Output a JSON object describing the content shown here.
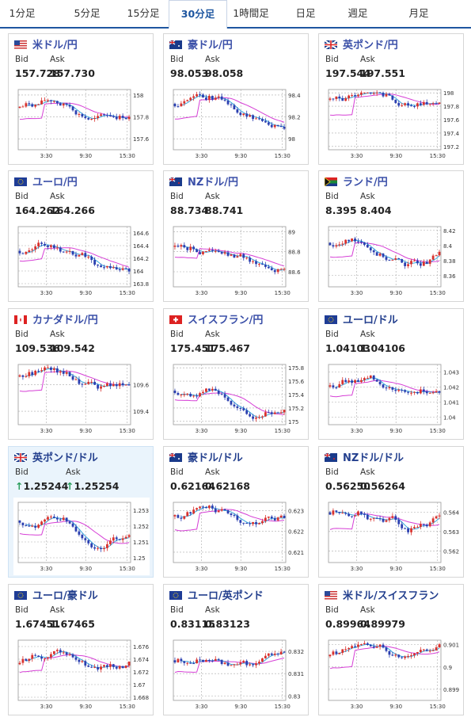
{
  "tabs": [
    {
      "label": "1分足",
      "active": false
    },
    {
      "label": "5分足",
      "active": false
    },
    {
      "label": "15分足",
      "active": false
    },
    {
      "label": "30分足",
      "active": true
    },
    {
      "label": "1時間足",
      "active": false
    },
    {
      "label": "日足",
      "active": false
    },
    {
      "label": "週足",
      "active": false
    },
    {
      "label": "月足",
      "active": false
    }
  ],
  "labels": {
    "bid": "Bid",
    "ask": "Ask"
  },
  "colors": {
    "up": "#d9322e",
    "down": "#2b3fb0",
    "ma_short": "#35a6dd",
    "ma_long": "#d63fd6",
    "accent": "#1e56a0"
  },
  "x_ticks": [
    "3:30",
    "9:30",
    "15:30"
  ],
  "pairs": [
    {
      "name": "米ドル/円",
      "flag": "us-jp-flag",
      "bid": "157.728",
      "ask": "157.730",
      "yticks": [
        "158",
        "157.8",
        "157.6"
      ],
      "ylim": [
        157.5,
        158.05
      ],
      "arrow": false
    },
    {
      "name": "豪ドル/円",
      "flag": "au-jp-flag",
      "bid": "98.053",
      "ask": "98.058",
      "yticks": [
        "98.4",
        "98.2",
        "98"
      ],
      "ylim": [
        97.9,
        98.45
      ],
      "arrow": false
    },
    {
      "name": "英ポンド/円",
      "flag": "gb-jp-flag",
      "bid": "197.544",
      "ask": "197.551",
      "yticks": [
        "198",
        "197.8",
        "197.6",
        "197.4",
        "197.2"
      ],
      "ylim": [
        197.15,
        198.05
      ],
      "arrow": false
    },
    {
      "name": "ユーロ/円",
      "flag": "eu-jp-flag",
      "bid": "164.262",
      "ask": "164.266",
      "yticks": [
        "164.6",
        "164.4",
        "164.2",
        "164",
        "163.8"
      ],
      "ylim": [
        163.75,
        164.7
      ],
      "arrow": false
    },
    {
      "name": "NZドル/円",
      "flag": "nz-jp-flag",
      "bid": "88.734",
      "ask": "88.741",
      "yticks": [
        "89",
        "88.8",
        "88.6"
      ],
      "ylim": [
        88.45,
        89.05
      ],
      "arrow": false
    },
    {
      "name": "ランド/円",
      "flag": "za-jp-flag",
      "bid": "8.395",
      "ask": "8.404",
      "yticks": [
        "8.42",
        "8.4",
        "8.38",
        "8.36"
      ],
      "ylim": [
        8.345,
        8.425
      ],
      "arrow": false
    },
    {
      "name": "カナダドル/円",
      "flag": "ca-jp-flag",
      "bid": "109.536",
      "ask": "109.542",
      "yticks": [
        "109.6",
        "109.4"
      ],
      "ylim": [
        109.3,
        109.75
      ],
      "arrow": false
    },
    {
      "name": "スイスフラン/円",
      "flag": "ch-jp-flag",
      "bid": "175.451",
      "ask": "175.467",
      "yticks": [
        "175.8",
        "175.6",
        "175.4",
        "175.2",
        "175"
      ],
      "ylim": [
        174.95,
        175.85
      ],
      "arrow": false
    },
    {
      "name": "ユーロ/ドル",
      "flag": "eu-us-flag",
      "bid": "1.04103",
      "ask": "1.04106",
      "yticks": [
        "1.043",
        "1.042",
        "1.041",
        "1.04"
      ],
      "ylim": [
        1.0395,
        1.0435
      ],
      "arrow": false
    },
    {
      "name": "英ポンド/ドル",
      "flag": "gb-us-flag",
      "bid": "1.25244",
      "ask": "1.25254",
      "yticks": [
        "1.253",
        "1.252",
        "1.251",
        "1.25"
      ],
      "ylim": [
        1.2497,
        1.2535
      ],
      "arrow": true
    },
    {
      "name": "豪ドル/ドル",
      "flag": "au-us-flag",
      "bid": "0.62164",
      "ask": "0.62168",
      "yticks": [
        "0.623",
        "0.622",
        "0.621"
      ],
      "ylim": [
        0.6205,
        0.6234
      ],
      "arrow": false
    },
    {
      "name": "NZドル/ドル",
      "flag": "nz-us-flag",
      "bid": "0.56250",
      "ask": "0.56264",
      "yticks": [
        "0.564",
        "0.563",
        "0.562"
      ],
      "ylim": [
        0.5614,
        0.5645
      ],
      "arrow": false
    },
    {
      "name": "ユーロ/豪ドル",
      "flag": "eu-au-flag",
      "bid": "1.67451",
      "ask": "1.67465",
      "yticks": [
        "1.676",
        "1.674",
        "1.672",
        "1.67",
        "1.668"
      ],
      "ylim": [
        1.6675,
        1.677
      ],
      "arrow": false
    },
    {
      "name": "ユーロ/英ポンド",
      "flag": "eu-gb-flag",
      "bid": "0.83115",
      "ask": "0.83123",
      "yticks": [
        "0.832",
        "0.831",
        "0.83"
      ],
      "ylim": [
        0.8298,
        0.8325
      ],
      "arrow": false
    },
    {
      "name": "米ドル/スイスフラン",
      "flag": "us-ch-flag",
      "bid": "0.89964",
      "ask": "0.89979",
      "yticks": [
        "0.901",
        "0.9",
        "0.899"
      ],
      "ylim": [
        0.8985,
        0.9012
      ],
      "arrow": false
    }
  ]
}
